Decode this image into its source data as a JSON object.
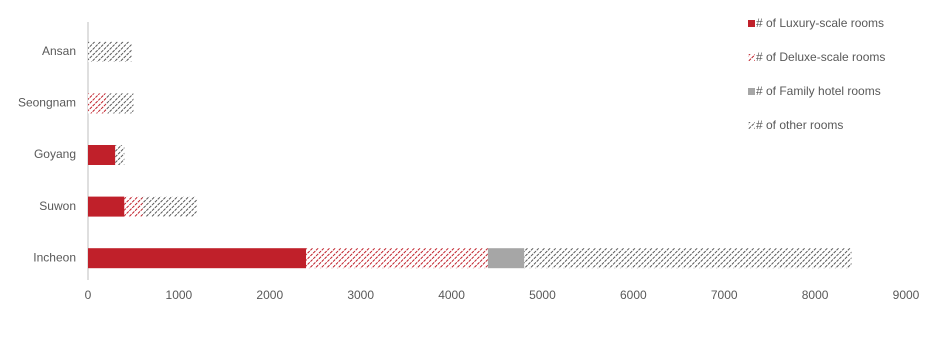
{
  "chart_data": {
    "type": "stacked-bar-horizontal",
    "categories": [
      "Ansan",
      "Seongnam",
      "Goyang",
      "Suwon",
      "Incheon"
    ],
    "series": [
      {
        "name": "# of Luxury-scale rooms",
        "color": "#c0202a",
        "pattern": "solid",
        "values": [
          0,
          0,
          300,
          400,
          2400
        ]
      },
      {
        "name": "# of Deluxe-scale rooms",
        "color": "#c0202a",
        "pattern": "hatch",
        "values": [
          0,
          200,
          0,
          200,
          2000
        ]
      },
      {
        "name": "# of Family hotel rooms",
        "color": "#a6a6a6",
        "pattern": "solid",
        "values": [
          0,
          0,
          0,
          0,
          400
        ]
      },
      {
        "name": "# of other rooms",
        "color": "#595959",
        "pattern": "hatch",
        "values": [
          480,
          300,
          100,
          600,
          3600
        ]
      }
    ],
    "xlim": [
      0,
      9000
    ],
    "xticks": [
      0,
      1000,
      2000,
      3000,
      4000,
      5000,
      6000,
      7000,
      8000,
      9000
    ],
    "legend": "top-right"
  }
}
